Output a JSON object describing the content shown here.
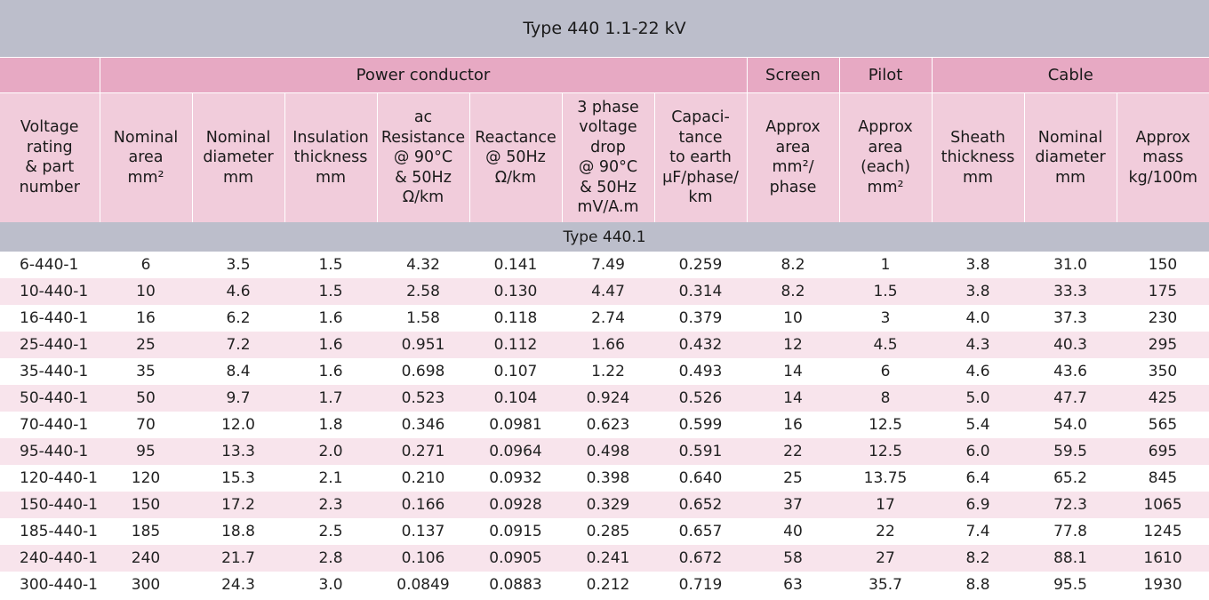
{
  "title": "Type 440  1.1-22 kV",
  "groups": {
    "power_conductor": "Power conductor",
    "screen": "Screen",
    "pilot": "Pilot",
    "cable": "Cable"
  },
  "columns": [
    "Voltage\nrating\n& part\nnumber",
    "Nominal\narea\nmm²",
    "Nominal\ndiameter\nmm",
    "Insulation\nthickness\nmm",
    "ac\nResistance\n@ 90°C\n& 50Hz\nΩ/km",
    "Reactance\n@ 50Hz\nΩ/km",
    "3 phase\nvoltage\ndrop\n@ 90°C\n& 50Hz\nmV/A.m",
    "Capaci-\ntance\nto earth\nμF/phase/\nkm",
    "Approx\narea\nmm²/\nphase",
    "Approx\narea\n(each)\nmm²",
    "Sheath\nthickness\nmm",
    "Nominal\ndiameter\nmm",
    "Approx\nmass\nkg/100m"
  ],
  "subheader": "Type 440.1",
  "rows": [
    [
      "6-440-1",
      "6",
      "3.5",
      "1.5",
      "4.32",
      "0.141",
      "7.49",
      "0.259",
      "8.2",
      "1",
      "3.8",
      "31.0",
      "150"
    ],
    [
      "10-440-1",
      "10",
      "4.6",
      "1.5",
      "2.58",
      "0.130",
      "4.47",
      "0.314",
      "8.2",
      "1.5",
      "3.8",
      "33.3",
      "175"
    ],
    [
      "16-440-1",
      "16",
      "6.2",
      "1.6",
      "1.58",
      "0.118",
      "2.74",
      "0.379",
      "10",
      "3",
      "4.0",
      "37.3",
      "230"
    ],
    [
      "25-440-1",
      "25",
      "7.2",
      "1.6",
      "0.951",
      "0.112",
      "1.66",
      "0.432",
      "12",
      "4.5",
      "4.3",
      "40.3",
      "295"
    ],
    [
      "35-440-1",
      "35",
      "8.4",
      "1.6",
      "0.698",
      "0.107",
      "1.22",
      "0.493",
      "14",
      "6",
      "4.6",
      "43.6",
      "350"
    ],
    [
      "50-440-1",
      "50",
      "9.7",
      "1.7",
      "0.523",
      "0.104",
      "0.924",
      "0.526",
      "14",
      "8",
      "5.0",
      "47.7",
      "425"
    ],
    [
      "70-440-1",
      "70",
      "12.0",
      "1.8",
      "0.346",
      "0.0981",
      "0.623",
      "0.599",
      "16",
      "12.5",
      "5.4",
      "54.0",
      "565"
    ],
    [
      "95-440-1",
      "95",
      "13.3",
      "2.0",
      "0.271",
      "0.0964",
      "0.498",
      "0.591",
      "22",
      "12.5",
      "6.0",
      "59.5",
      "695"
    ],
    [
      "120-440-1",
      "120",
      "15.3",
      "2.1",
      "0.210",
      "0.0932",
      "0.398",
      "0.640",
      "25",
      "13.75",
      "6.4",
      "65.2",
      "845"
    ],
    [
      "150-440-1",
      "150",
      "17.2",
      "2.3",
      "0.166",
      "0.0928",
      "0.329",
      "0.652",
      "37",
      "17",
      "6.9",
      "72.3",
      "1065"
    ],
    [
      "185-440-1",
      "185",
      "18.8",
      "2.5",
      "0.137",
      "0.0915",
      "0.285",
      "0.657",
      "40",
      "22",
      "7.4",
      "77.8",
      "1245"
    ],
    [
      "240-440-1",
      "240",
      "21.7",
      "2.8",
      "0.106",
      "0.0905",
      "0.241",
      "0.672",
      "58",
      "27",
      "8.2",
      "88.1",
      "1610"
    ],
    [
      "300-440-1",
      "300",
      "24.3",
      "3.0",
      "0.0849",
      "0.0883",
      "0.212",
      "0.719",
      "63",
      "35.7",
      "8.8",
      "95.5",
      "1930"
    ]
  ],
  "colors": {
    "title_bg": "#bcbecb",
    "group_bg": "#e7a9c3",
    "header_bg": "#f1ccdb",
    "alt_row_bg": "#f8e4ec"
  }
}
